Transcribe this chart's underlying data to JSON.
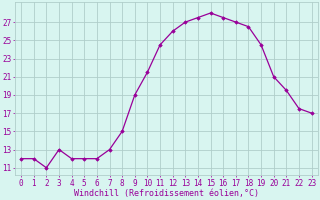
{
  "x": [
    0,
    1,
    2,
    3,
    4,
    5,
    6,
    7,
    8,
    9,
    10,
    11,
    12,
    13,
    14,
    15,
    16,
    17,
    18,
    19,
    20,
    21,
    22,
    23
  ],
  "y": [
    12,
    12,
    11,
    13,
    12,
    12,
    12,
    13,
    15,
    19,
    21.5,
    24.5,
    26,
    27,
    27.5,
    28,
    27.5,
    27,
    26.5,
    24.5,
    21,
    19.5,
    17.5,
    17
  ],
  "line_color": "#990099",
  "marker": "D",
  "marker_size": 1.8,
  "bg_color": "#d8f5f0",
  "grid_color": "#b0ceca",
  "xlabel": "Windchill (Refroidissement éolien,°C)",
  "xlabel_color": "#990099",
  "xlabel_fontsize": 6.0,
  "ytick_values": [
    11,
    13,
    15,
    17,
    19,
    21,
    23,
    25,
    27
  ],
  "ylim": [
    10.2,
    29.2
  ],
  "xlim": [
    -0.5,
    23.5
  ],
  "tick_fontsize": 5.5,
  "tick_color": "#990099",
  "line_width": 0.9
}
